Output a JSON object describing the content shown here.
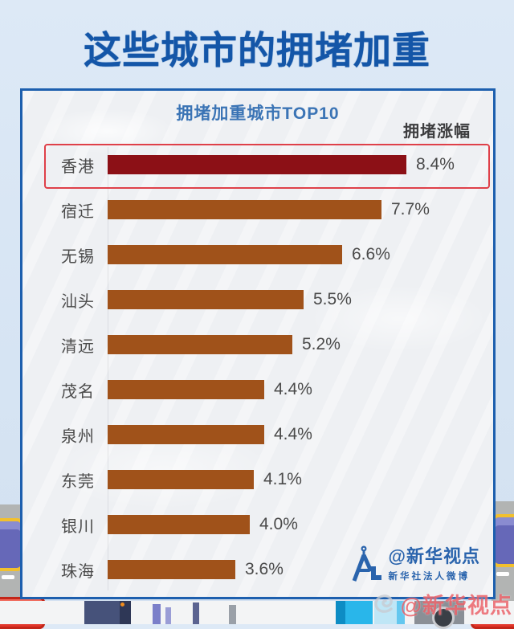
{
  "page_title": "这些城市的拥堵加重",
  "panel": {
    "chart_title": "拥堵加重城市TOP10",
    "axis_label": "拥堵涨幅"
  },
  "chart_data": {
    "type": "bar",
    "orientation": "horizontal",
    "title": "拥堵加重城市TOP10",
    "value_header": "拥堵涨幅",
    "categories": [
      "香港",
      "宿迁",
      "无锡",
      "汕头",
      "清远",
      "茂名",
      "泉州",
      "东莞",
      "银川",
      "珠海"
    ],
    "values": [
      8.4,
      7.7,
      6.6,
      5.5,
      5.2,
      4.4,
      4.4,
      4.1,
      4.0,
      3.6
    ],
    "unit": "%",
    "value_labels": [
      "8.4%",
      "7.7%",
      "6.6%",
      "5.5%",
      "5.2%",
      "4.4%",
      "4.4%",
      "4.1%",
      "4.0%",
      "3.6%"
    ],
    "xlim": [
      0,
      9
    ],
    "highlighted_category": "香港",
    "bar_color": "#a0521a",
    "highlight_bar_color": "#8c1016",
    "highlight_box_color": "#df4049",
    "legend_position": "none",
    "grid": false
  },
  "branding": {
    "logo_text": "@新华视点",
    "logo_subtext": "新华社法人微博",
    "logo_color": "#2a64ad"
  },
  "watermark": {
    "text": "@新华视点",
    "color": "#e9555c"
  },
  "colors": {
    "title_blue": "#1456a8",
    "panel_border_blue": "#1d5fae",
    "chart_title_blue": "#3b74b5",
    "text_gray": "#4a4a4a",
    "background_blue": "#d8e5f3"
  }
}
